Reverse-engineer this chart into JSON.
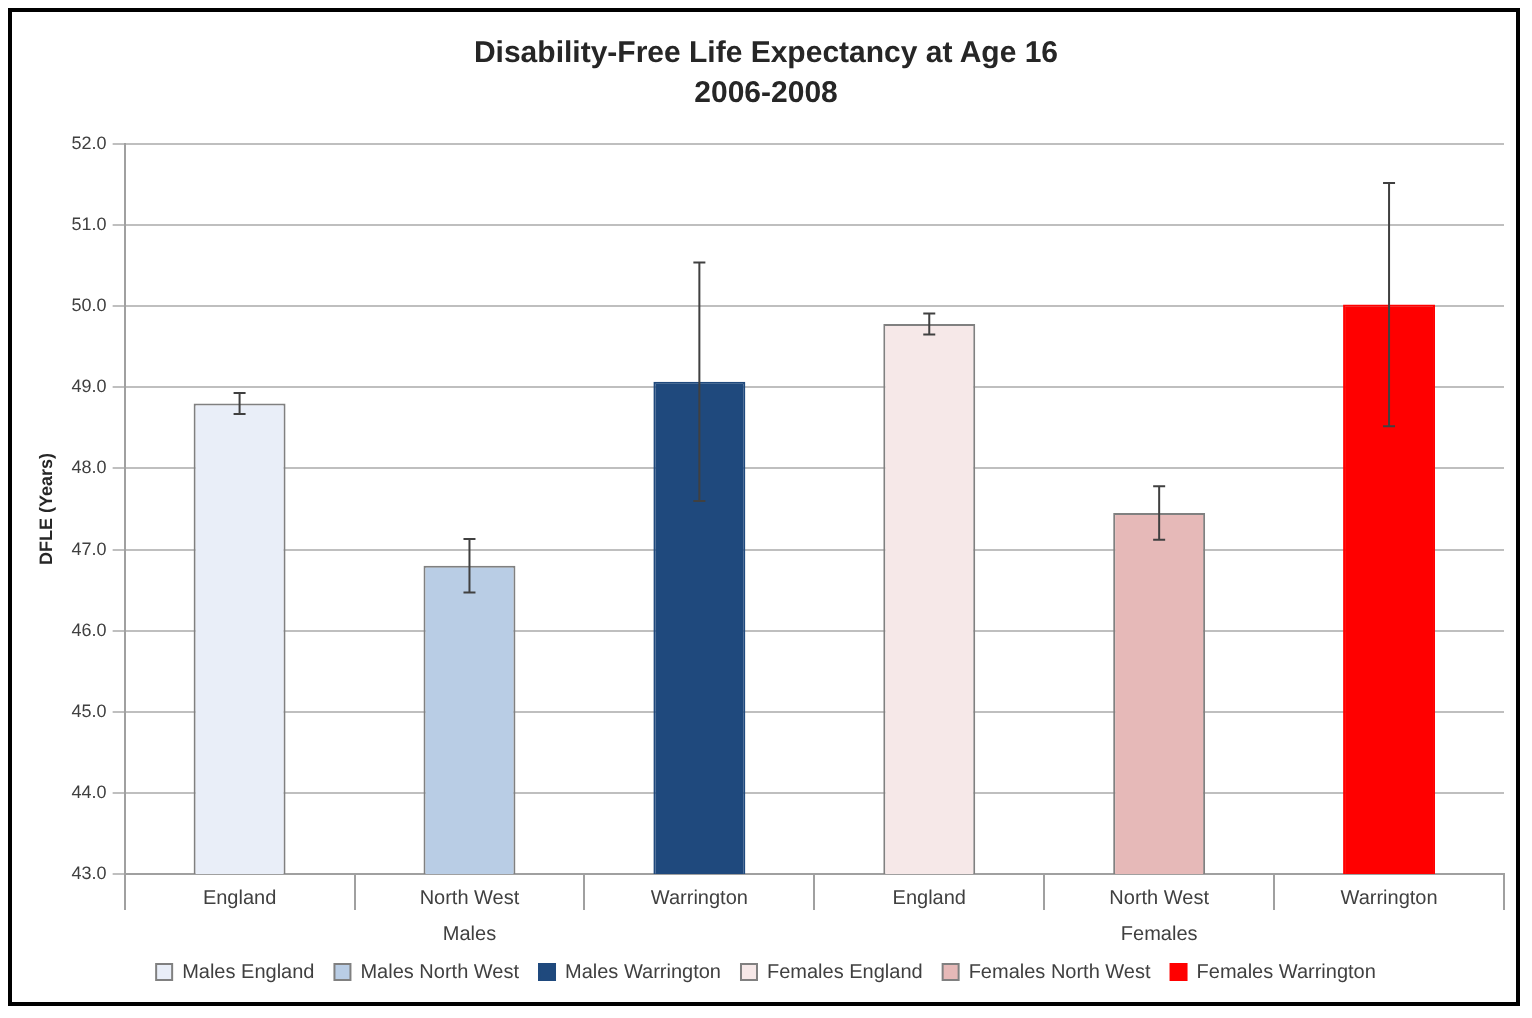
{
  "chart_data": {
    "type": "bar",
    "title": "Disability-Free Life Expectancy at Age 16",
    "subtitle": "2006-2008",
    "ylabel": "DFLE (Years)",
    "categories": [
      "England",
      "North West",
      "Warrington",
      "England",
      "North West",
      "Warrington"
    ],
    "annotations": [
      "Males",
      "Females"
    ],
    "series": [
      {
        "name": "Males England",
        "color": "#e9eef8",
        "values": [
          48.8,
          null,
          null,
          null,
          null,
          null
        ],
        "errors": [
          0.13,
          null,
          null,
          null,
          null,
          null
        ]
      },
      {
        "name": "Males North West",
        "color": "#b9cde5",
        "values": [
          null,
          46.8,
          null,
          null,
          null,
          null
        ],
        "errors": [
          null,
          0.33,
          null,
          null,
          null,
          null
        ]
      },
      {
        "name": "Males Warrington",
        "color": "#1f497d",
        "values": [
          null,
          null,
          49.07,
          null,
          null,
          null
        ],
        "errors": [
          null,
          null,
          1.47,
          null,
          null,
          null
        ]
      },
      {
        "name": "Females England",
        "color": "#f6e8e8",
        "values": [
          null,
          null,
          null,
          49.78,
          null,
          null
        ],
        "errors": [
          null,
          null,
          null,
          0.13,
          null,
          null
        ]
      },
      {
        "name": "Females North West",
        "color": "#e6b9b8",
        "values": [
          null,
          null,
          null,
          null,
          47.45,
          null
        ],
        "errors": [
          null,
          null,
          null,
          null,
          0.33,
          null
        ]
      },
      {
        "name": "Females Warrington",
        "color": "#ff0000",
        "values": [
          null,
          null,
          null,
          null,
          null,
          50.02
        ],
        "errors": [
          null,
          null,
          null,
          null,
          null,
          1.5
        ]
      }
    ],
    "ylim": [
      43,
      52
    ],
    "yticks": [
      {
        "value": 43,
        "label": "43.0"
      },
      {
        "value": 44,
        "label": "44.0"
      },
      {
        "value": 45,
        "label": "45.0"
      },
      {
        "value": 46,
        "label": "46.0"
      },
      {
        "value": 47,
        "label": "47.0"
      },
      {
        "value": 48,
        "label": "48.0"
      },
      {
        "value": 49,
        "label": "49.0"
      },
      {
        "value": 50,
        "label": "50.0"
      },
      {
        "value": 51,
        "label": "51.0"
      },
      {
        "value": 52,
        "label": "52.0"
      }
    ],
    "grid": "y",
    "legend": "bottom"
  }
}
